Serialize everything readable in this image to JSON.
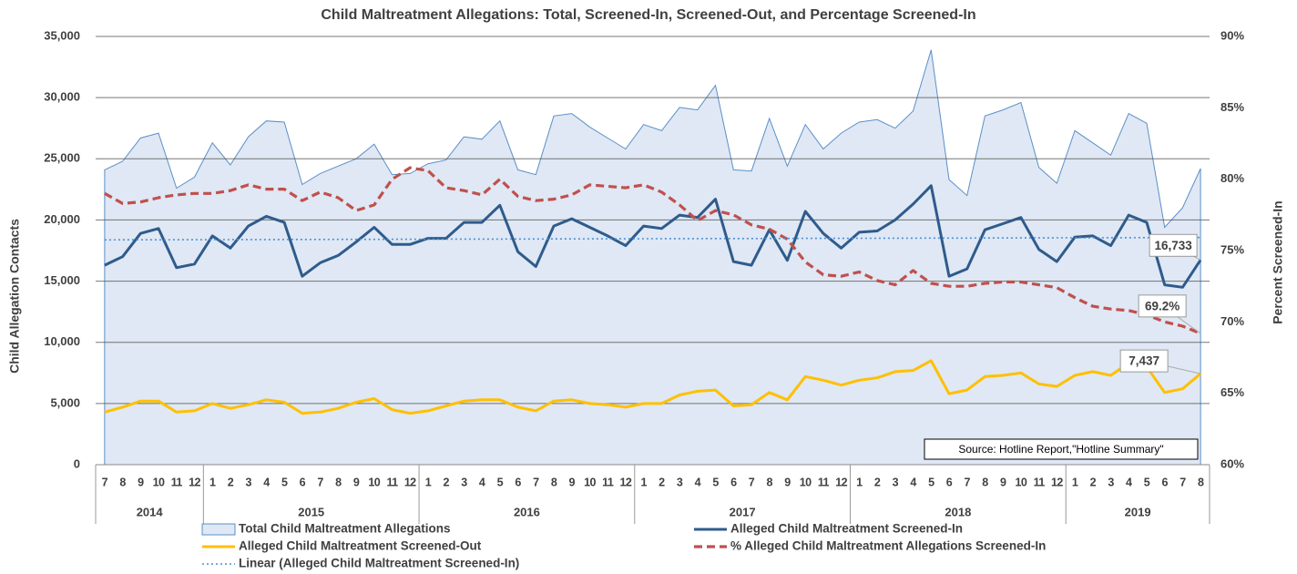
{
  "chart_data": {
    "type": "line",
    "title": "Child Maltreatment Allegations: Total, Screened-In, Screened-Out, and Percentage Screened-In",
    "y_label": "Child Allegation Contacts",
    "y2_label": "Percent Screened-In",
    "source": "Source: Hotline Report,\"Hotline Summary\"",
    "categories": [
      "7",
      "8",
      "9",
      "10",
      "11",
      "12",
      "1",
      "2",
      "3",
      "4",
      "5",
      "6",
      "7",
      "8",
      "9",
      "10",
      "11",
      "12",
      "1",
      "2",
      "3",
      "4",
      "5",
      "6",
      "7",
      "8",
      "9",
      "10",
      "11",
      "12",
      "1",
      "2",
      "3",
      "4",
      "5",
      "6",
      "7",
      "8",
      "9",
      "10",
      "11",
      "12",
      "1",
      "2",
      "3",
      "4",
      "5",
      "6",
      "7",
      "8",
      "9",
      "10",
      "11",
      "12",
      "1",
      "2",
      "3",
      "4",
      "5",
      "6",
      "7",
      "8"
    ],
    "years": [
      "2014",
      "2015",
      "2016",
      "2017",
      "2018",
      "2019"
    ],
    "ylim": [
      0,
      35000
    ],
    "yticks": [
      {
        "value": 0,
        "label": "0"
      },
      {
        "value": 5000,
        "label": "5,000"
      },
      {
        "value": 10000,
        "label": "10,000"
      },
      {
        "value": 15000,
        "label": "15,000"
      },
      {
        "value": 20000,
        "label": "20,000"
      },
      {
        "value": 25000,
        "label": "25,000"
      },
      {
        "value": 30000,
        "label": "30,000"
      },
      {
        "value": 35000,
        "label": "35,000"
      }
    ],
    "y2lim": [
      60,
      90
    ],
    "y2ticks": [
      {
        "value": 60,
        "label": "60%"
      },
      {
        "value": 65,
        "label": "65%"
      },
      {
        "value": 70,
        "label": "70%"
      },
      {
        "value": 75,
        "label": "75%"
      },
      {
        "value": 80,
        "label": "80%"
      },
      {
        "value": 85,
        "label": "85%"
      },
      {
        "value": 90,
        "label": "90%"
      }
    ],
    "grid": true,
    "series": [
      {
        "name": "Total Child Maltreatment Allegations",
        "kind": "area",
        "color": "#5b8fc7",
        "fill": "#dfe8f4",
        "values": [
          24100,
          24800,
          26700,
          27100,
          22600,
          23500,
          26300,
          24500,
          26800,
          28100,
          28000,
          22900,
          23800,
          24400,
          25000,
          26200,
          23700,
          23800,
          24600,
          24900,
          26800,
          26600,
          28100,
          24100,
          23700,
          28500,
          28700,
          27600,
          26700,
          25800,
          27800,
          27300,
          29200,
          29000,
          31000,
          24100,
          24000,
          28300,
          24400,
          27800,
          25800,
          27100,
          28000,
          28200,
          27500,
          28900,
          33900,
          23300,
          22000,
          28500,
          29000,
          29600,
          24300,
          23000,
          27300,
          26300,
          25300,
          28700,
          27900,
          19400,
          21000,
          24200
        ]
      },
      {
        "name": "Alleged Child Maltreatment Screened-In",
        "kind": "line",
        "dash": "solid",
        "color": "#2f5b8c",
        "values": [
          16300,
          17000,
          18900,
          19300,
          16100,
          16400,
          18700,
          17700,
          19500,
          20300,
          19800,
          15400,
          16500,
          17100,
          18200,
          19400,
          18000,
          18000,
          18500,
          18500,
          19800,
          19800,
          21200,
          17400,
          16200,
          19500,
          20100,
          19400,
          18700,
          17900,
          19500,
          19300,
          20400,
          20200,
          21700,
          16600,
          16300,
          19200,
          16700,
          20700,
          18900,
          17700,
          19000,
          19100,
          20000,
          21300,
          22800,
          15400,
          16000,
          19200,
          19700,
          20200,
          17600,
          16600,
          18600,
          18700,
          17900,
          20400,
          19800,
          14700,
          14500,
          16733
        ],
        "value_labels": [
          null,
          null,
          null,
          null,
          null,
          null,
          null,
          null,
          null,
          null,
          null,
          null,
          null,
          null,
          null,
          null,
          null,
          null,
          null,
          null,
          null,
          null,
          null,
          null,
          null,
          null,
          null,
          null,
          null,
          null,
          null,
          null,
          null,
          null,
          null,
          null,
          null,
          null,
          null,
          null,
          null,
          null,
          null,
          null,
          null,
          null,
          null,
          null,
          null,
          null,
          null,
          null,
          null,
          null,
          null,
          null,
          null,
          null,
          null,
          null,
          null,
          "16,733"
        ]
      },
      {
        "name": "Alleged Child Maltreatment Screened-Out",
        "kind": "line",
        "dash": "solid",
        "color": "#ffc000",
        "values": [
          4300,
          4700,
          5200,
          5200,
          4300,
          4400,
          5000,
          4600,
          4900,
          5300,
          5100,
          4200,
          4300,
          4600,
          5100,
          5400,
          4500,
          4200,
          4400,
          4800,
          5200,
          5300,
          5300,
          4700,
          4400,
          5200,
          5300,
          5000,
          4900,
          4700,
          5000,
          5000,
          5700,
          6000,
          6100,
          4800,
          4900,
          5900,
          5300,
          7200,
          6900,
          6500,
          6900,
          7100,
          7600,
          7700,
          8500,
          5800,
          6100,
          7200,
          7300,
          7500,
          6600,
          6400,
          7300,
          7600,
          7300,
          8300,
          8000,
          5900,
          6200,
          7437
        ],
        "value_labels": [
          null,
          null,
          null,
          null,
          null,
          null,
          null,
          null,
          null,
          null,
          null,
          null,
          null,
          null,
          null,
          null,
          null,
          null,
          null,
          null,
          null,
          null,
          null,
          null,
          null,
          null,
          null,
          null,
          null,
          null,
          null,
          null,
          null,
          null,
          null,
          null,
          null,
          null,
          null,
          null,
          null,
          null,
          null,
          null,
          null,
          null,
          null,
          null,
          null,
          null,
          null,
          null,
          null,
          null,
          null,
          null,
          null,
          null,
          null,
          null,
          null,
          "7,437"
        ]
      },
      {
        "name": "% Alleged Child Maltreatment Allegations Screened-In",
        "kind": "line",
        "dash": "dashed",
        "color": "#c0504d",
        "axis": "y2",
        "values": [
          79,
          78.3,
          78.4,
          78.7,
          78.9,
          79,
          79,
          79.2,
          79.6,
          79.3,
          79.3,
          78.5,
          79.1,
          78.7,
          77.8,
          78.2,
          80,
          80.8,
          80.6,
          79.4,
          79.2,
          78.9,
          80,
          78.8,
          78.5,
          78.6,
          78.9,
          79.6,
          79.5,
          79.4,
          79.6,
          79.1,
          78.2,
          77.1,
          77.8,
          77.5,
          76.8,
          76.5,
          75.8,
          74.2,
          73.3,
          73.2,
          73.5,
          72.9,
          72.6,
          73.6,
          72.7,
          72.5,
          72.5,
          72.7,
          72.8,
          72.8,
          72.6,
          72.4,
          71.7,
          71.1,
          70.9,
          70.8,
          70.5,
          70,
          69.7,
          69.2
        ],
        "value_labels": [
          null,
          null,
          null,
          null,
          null,
          null,
          null,
          null,
          null,
          null,
          null,
          null,
          null,
          null,
          null,
          null,
          null,
          null,
          null,
          null,
          null,
          null,
          null,
          null,
          null,
          null,
          null,
          null,
          null,
          null,
          null,
          null,
          null,
          null,
          null,
          null,
          null,
          null,
          null,
          null,
          null,
          null,
          null,
          null,
          null,
          null,
          null,
          null,
          null,
          null,
          null,
          null,
          null,
          null,
          null,
          null,
          null,
          null,
          null,
          null,
          null,
          "69.2%"
        ]
      },
      {
        "name": "Linear (Alleged Child Maltreatment Screened-In)",
        "kind": "trend",
        "trend": "linear",
        "source": "Alleged Child Maltreatment Screened-In",
        "dash": "dotted",
        "color": "#4a8fd6"
      }
    ]
  }
}
